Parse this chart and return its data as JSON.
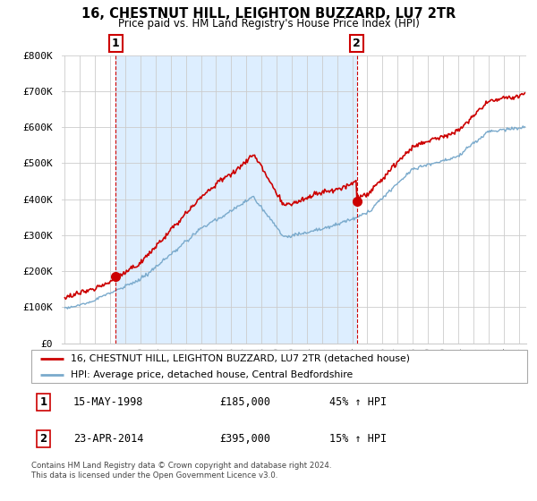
{
  "title": "16, CHESTNUT HILL, LEIGHTON BUZZARD, LU7 2TR",
  "subtitle": "Price paid vs. HM Land Registry's House Price Index (HPI)",
  "ylabel_ticks": [
    "£0",
    "£100K",
    "£200K",
    "£300K",
    "£400K",
    "£500K",
    "£600K",
    "£700K",
    "£800K"
  ],
  "ytick_vals": [
    0,
    100000,
    200000,
    300000,
    400000,
    500000,
    600000,
    700000,
    800000
  ],
  "ylim": [
    0,
    800000
  ],
  "xlim_start": 1994.8,
  "xlim_end": 2025.5,
  "legend_line1": "16, CHESTNUT HILL, LEIGHTON BUZZARD, LU7 2TR (detached house)",
  "legend_line2": "HPI: Average price, detached house, Central Bedfordshire",
  "annotation1_label": "1",
  "annotation1_date": "15-MAY-1998",
  "annotation1_price": "£185,000",
  "annotation1_pct": "45% ↑ HPI",
  "annotation2_label": "2",
  "annotation2_date": "23-APR-2014",
  "annotation2_price": "£395,000",
  "annotation2_pct": "15% ↑ HPI",
  "footer": "Contains HM Land Registry data © Crown copyright and database right 2024.\nThis data is licensed under the Open Government Licence v3.0.",
  "red_color": "#cc0000",
  "blue_color": "#7aaacc",
  "shade_color": "#ddeeff",
  "dashed_red_color": "#cc0000",
  "bg_color": "#ffffff",
  "grid_color": "#cccccc",
  "point1_x": 1998.37,
  "point1_y": 185000,
  "point2_x": 2014.31,
  "point2_y": 395000,
  "vline1_x": 1998.37,
  "vline2_x": 2014.31
}
